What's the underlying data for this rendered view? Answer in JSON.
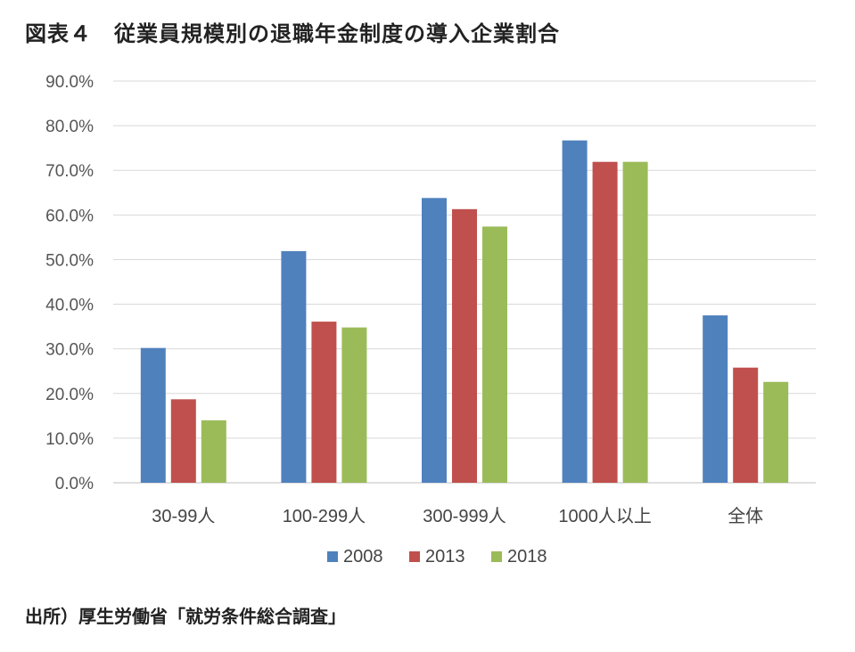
{
  "title": "図表４　従業員規模別の退職年金制度の導入企業割合",
  "source": "出所）厚生労働省「就労条件総合調査」",
  "colors": {
    "2008": "#4F81BD",
    "2013": "#C0504D",
    "2018": "#9BBB59",
    "grid": "#d9d9d9"
  },
  "chart_data": {
    "type": "bar",
    "categories": [
      "30-99人",
      "100-299人",
      "300-999人",
      "1000人以上",
      "全体"
    ],
    "series": [
      {
        "name": "2008",
        "values": [
          30.2,
          51.9,
          63.8,
          76.7,
          37.5
        ]
      },
      {
        "name": "2013",
        "values": [
          18.7,
          36.1,
          61.3,
          71.9,
          25.8
        ]
      },
      {
        "name": "2018",
        "values": [
          14.0,
          34.8,
          57.4,
          71.9,
          22.6
        ]
      }
    ],
    "y_ticks": [
      "0.0%",
      "10.0%",
      "20.0%",
      "30.0%",
      "40.0%",
      "50.0%",
      "60.0%",
      "70.0%",
      "80.0%",
      "90.0%"
    ],
    "ylim": [
      0,
      90
    ],
    "grid": true,
    "legend_position": "bottom"
  }
}
